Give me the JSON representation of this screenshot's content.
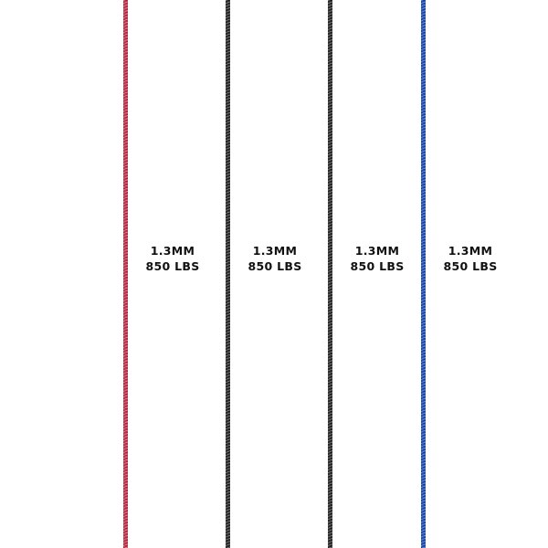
{
  "cords": [
    {
      "color": "#c8324a",
      "diameter": "1.3MM",
      "strength": "850 LBS"
    },
    {
      "color": "#2a2a2a",
      "diameter": "1.3MM",
      "strength": "850 LBS"
    },
    {
      "color": "#2a2a2a",
      "diameter": "1.3MM",
      "strength": "850 LBS"
    },
    {
      "color": "#1f4fb8",
      "diameter": "1.3MM",
      "strength": "850 LBS"
    }
  ]
}
